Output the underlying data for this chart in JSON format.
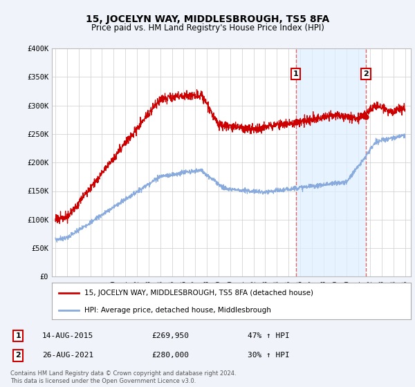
{
  "title": "15, JOCELYN WAY, MIDDLESBROUGH, TS5 8FA",
  "subtitle": "Price paid vs. HM Land Registry's House Price Index (HPI)",
  "ylim": [
    0,
    400000
  ],
  "xlim_start": 1994.7,
  "xlim_end": 2025.5,
  "sale1_date": 2015.62,
  "sale1_price": 269950,
  "sale1_label": "1",
  "sale2_date": 2021.65,
  "sale2_price": 280000,
  "sale2_label": "2",
  "line1_label": "15, JOCELYN WAY, MIDDLESBROUGH, TS5 8FA (detached house)",
  "line2_label": "HPI: Average price, detached house, Middlesbrough",
  "line1_color": "#cc0000",
  "line2_color": "#88aadd",
  "vline_color": "#dd6666",
  "shade_color": "#ddeeff",
  "footnote": "Contains HM Land Registry data © Crown copyright and database right 2024.\nThis data is licensed under the Open Government Licence v3.0.",
  "background_color": "#f0f4fa",
  "plot_bg_color": "#ffffff",
  "grid_color": "#cccccc",
  "label_box_color": "#cc0000"
}
